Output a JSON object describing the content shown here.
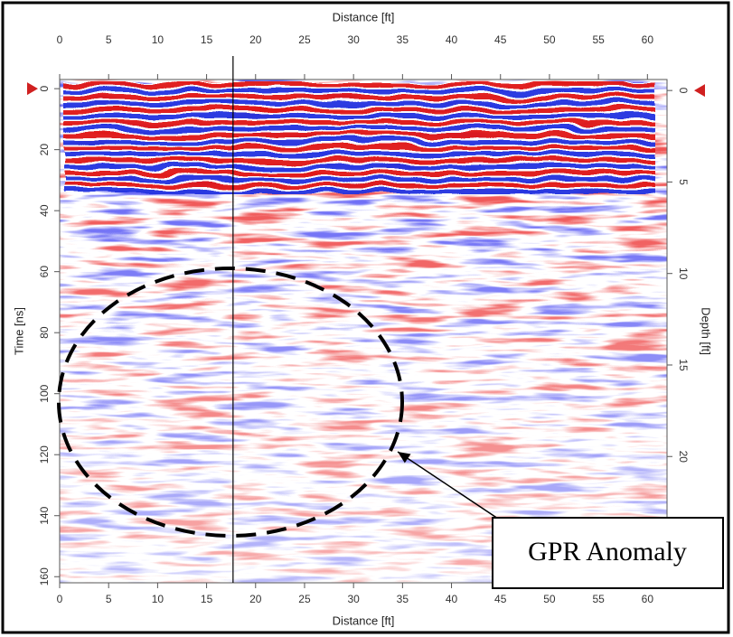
{
  "chart_data": {
    "type": "radargram",
    "x_label": "Distance [ft]",
    "y_label": "Time [ns]",
    "y2_label": "Depth [ft]",
    "xlim": [
      0,
      62
    ],
    "xticks": [
      0,
      5,
      10,
      15,
      20,
      25,
      30,
      35,
      40,
      45,
      50,
      55,
      60
    ],
    "ylim": [
      -3,
      162
    ],
    "yticks": [
      0,
      20,
      40,
      60,
      80,
      100,
      120,
      140,
      160
    ],
    "y2lim": [
      -0.6,
      26.9
    ],
    "y2ticks": [
      0,
      5,
      10,
      15,
      20
    ],
    "cursor_distance": 17.7,
    "annotation": "GPR Anomaly"
  }
}
